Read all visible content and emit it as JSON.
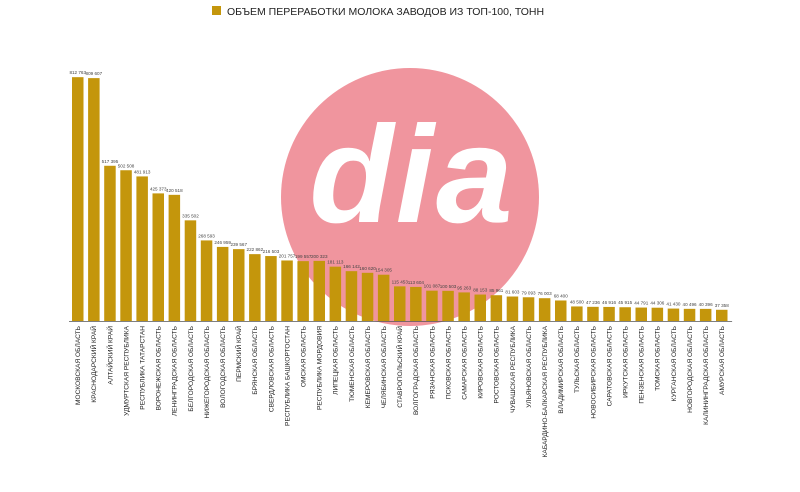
{
  "chart_data": {
    "type": "bar",
    "title": "ОБЪЕМ ПЕРЕРАБОТКИ МОЛОКА ЗАВОДОВ ИЗ ТОП-100, ТОНН",
    "legend_position": "top-center",
    "grid": false,
    "ylim": [
      0,
      1000000
    ],
    "colors": {
      "bar": "#C4960C",
      "watermark_circle": "#F0959E",
      "watermark_text": "#FFFFFF",
      "axis": "#555555"
    },
    "watermark": "dia",
    "categories": [
      "МОСКОВСКАЯ ОБЛАСТЬ",
      "КРАСНОДАРСКИЙ КРАЙ",
      "АЛТАЙСКИЙ КРАЙ",
      "УДМУРТСКАЯ РЕСПУБЛИКА",
      "РЕСПУБЛИКА ТАТАРСТАН",
      "ВОРОНЕЖСКАЯ ОБЛАСТЬ",
      "ЛЕНИНГРАДСКАЯ ОБЛАСТЬ",
      "БЕЛГОРОДСКАЯ ОБЛАСТЬ",
      "НИЖЕГОРОДСКАЯ ОБЛАСТЬ",
      "ВОЛОГОДСКАЯ ОБЛАСТЬ",
      "ПЕРМСКИЙ КРАЙ",
      "БРЯНСКАЯ ОБЛАСТЬ",
      "СВЕРДЛОВСКАЯ ОБЛАСТЬ",
      "РЕСПУБЛИКА БАШКОРТОСТАН",
      "ОМСКАЯ ОБЛАСТЬ",
      "РЕСПУБЛИКА МОРДОВИЯ",
      "ЛИПЕЦКАЯ ОБЛАСТЬ",
      "ТЮМЕНСКАЯ ОБЛАСТЬ",
      "КЕМЕРОВСКАЯ ОБЛАСТЬ",
      "ЧЕЛЯБИНСКАЯ ОБЛАСТЬ",
      "СТАВРОПОЛЬСКИЙ КРАЙ",
      "ВОЛГОГРАДСКАЯ ОБЛАСТЬ",
      "РЯЗАНСКАЯ ОБЛАСТЬ",
      "ПСКОВСКАЯ ОБЛАСТЬ",
      "САМАРСКАЯ ОБЛАСТЬ",
      "КИРОВСКАЯ ОБЛАСТЬ",
      "РОСТОВСКАЯ ОБЛАСТЬ",
      "ЧУВАШСКАЯ РЕСПУБЛИКА",
      "УЛЬЯНОВСКАЯ ОБЛАСТЬ",
      "КАБАРДИНО-БАЛКАРСКАЯ РЕСПУБЛИКА",
      "ВЛАДИМИРСКАЯ ОБЛАСТЬ",
      "ТУЛЬСКАЯ ОБЛАСТЬ",
      "НОВОСИБИРСКАЯ ОБЛАСТЬ",
      "САРАТОВСКАЯ ОБЛАСТЬ",
      "ИРКУТСКАЯ ОБЛАСТЬ",
      "ПЕНЗЕНСКАЯ ОБЛАСТЬ",
      "ТОМСКАЯ ОБЛАСТЬ",
      "КУРГАНСКАЯ ОБЛАСТЬ",
      "НОВГОРОДСКАЯ ОБЛАСТЬ",
      "КАЛИНИНГРАДСКАЯ ОБЛАСТЬ",
      "АМУРСКАЯ ОБЛАСТЬ"
    ],
    "series": [
      {
        "values": [
          812763,
          809607,
          517395,
          502508,
          481913,
          425373,
          420518,
          335502,
          268593,
          246959,
          239567,
          222862,
          216503,
          201757,
          199557,
          200323,
          181113,
          166142,
          160620,
          154305,
          115453,
          113604,
          101087,
          100503,
          95263,
          88153,
          85961,
          81603,
          79093,
          76003,
          68400,
          48500,
          47236,
          46916,
          45915,
          44791,
          44306,
          41430,
          40496,
          40396,
          37358
        ],
        "labels": [
          "812 763",
          "809 607",
          "517 395",
          "502 508",
          "481 913",
          "425 373",
          "420 518",
          "335 502",
          "268 593",
          "246 959",
          "239 567",
          "222 862",
          "216 503",
          "201 757",
          "199 557",
          "200 323",
          "181 113",
          "166 142",
          "160 620",
          "154 305",
          "115 453",
          "113 604",
          "101 087",
          "100 503",
          "95 263",
          "88 153",
          "85 961",
          "81 603",
          "79 093",
          "76 003",
          "68 400",
          "48 500",
          "47 236",
          "46 916",
          "45 915",
          "44 791",
          "44 306",
          "41 430",
          "40 496",
          "40 396",
          "37 358"
        ]
      }
    ]
  }
}
